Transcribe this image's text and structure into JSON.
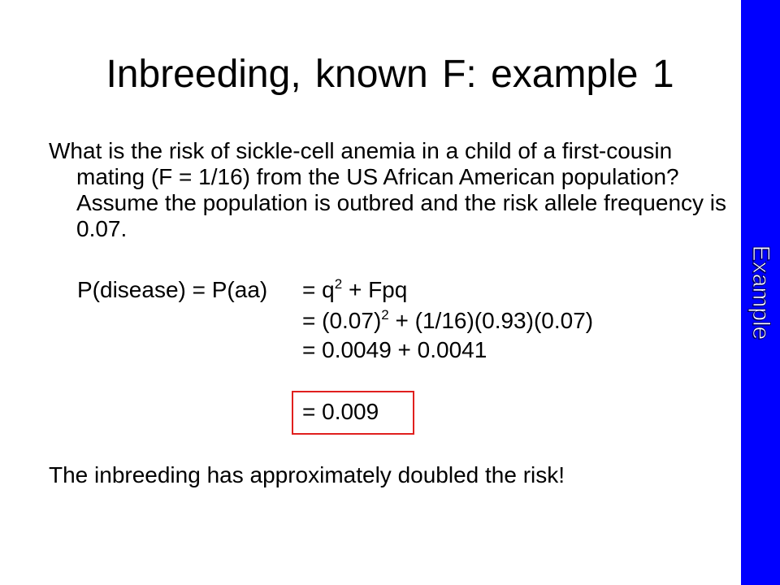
{
  "slide": {
    "title": "Inbreeding, known F:  example 1",
    "question": "What is the risk of sickle-cell anemia in a child of a first-cousin mating (F = 1/16) from the US African American population?  Assume the population is outbred and the risk allele frequency is 0.07.",
    "equation": {
      "lhs": "P(disease) = P(aa)",
      "line1_a": "= q",
      "line1_sup": "2",
      "line1_b": " + Fpq",
      "line2_a": "= (0.07)",
      "line2_sup": "2",
      "line2_b": " + (1/16)(0.93)(0.07)",
      "line3": "=  0.0049 + 0.0041",
      "result": "=  0.009"
    },
    "conclusion": "The inbreeding has approximately doubled the risk!",
    "sidebar_label": "Example"
  },
  "colors": {
    "sidebar": "#0000ff",
    "result_box_border": "#e0201e",
    "background": "#ffffff"
  }
}
